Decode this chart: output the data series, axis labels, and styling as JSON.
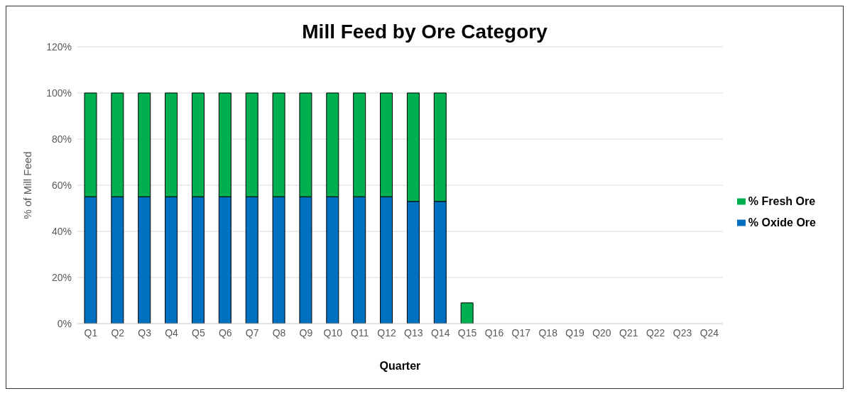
{
  "chart_data": {
    "type": "bar",
    "title": "Mill Feed by Ore Category",
    "xlabel": "Quarter",
    "ylabel": "% of Mill Feed",
    "categories": [
      "Q1",
      "Q2",
      "Q3",
      "Q4",
      "Q5",
      "Q6",
      "Q7",
      "Q8",
      "Q9",
      "Q10",
      "Q11",
      "Q12",
      "Q13",
      "Q14",
      "Q15",
      "Q16",
      "Q17",
      "Q18",
      "Q19",
      "Q20",
      "Q21",
      "Q22",
      "Q23",
      "Q24"
    ],
    "stacked": true,
    "series": [
      {
        "name": "% Oxide Ore",
        "color": "#0070c0",
        "values": [
          55,
          55,
          55,
          55,
          55,
          55,
          55,
          55,
          55,
          55,
          55,
          55,
          53,
          53,
          0,
          null,
          null,
          null,
          null,
          null,
          null,
          null,
          null,
          null
        ]
      },
      {
        "name": "% Fresh Ore",
        "color": "#00b050",
        "values": [
          45,
          45,
          45,
          45,
          45,
          45,
          45,
          45,
          45,
          45,
          45,
          45,
          47,
          47,
          9,
          null,
          null,
          null,
          null,
          null,
          null,
          null,
          null,
          null
        ]
      }
    ],
    "ylim": [
      0,
      120
    ],
    "yticks": [
      {
        "value": 0,
        "label": "0%"
      },
      {
        "value": 20,
        "label": "20%"
      },
      {
        "value": 40,
        "label": "40%"
      },
      {
        "value": 60,
        "label": "60%"
      },
      {
        "value": 80,
        "label": "80%"
      },
      {
        "value": 100,
        "label": "100%"
      },
      {
        "value": 120,
        "label": "120%"
      }
    ],
    "grid": "y",
    "legend": "right"
  }
}
